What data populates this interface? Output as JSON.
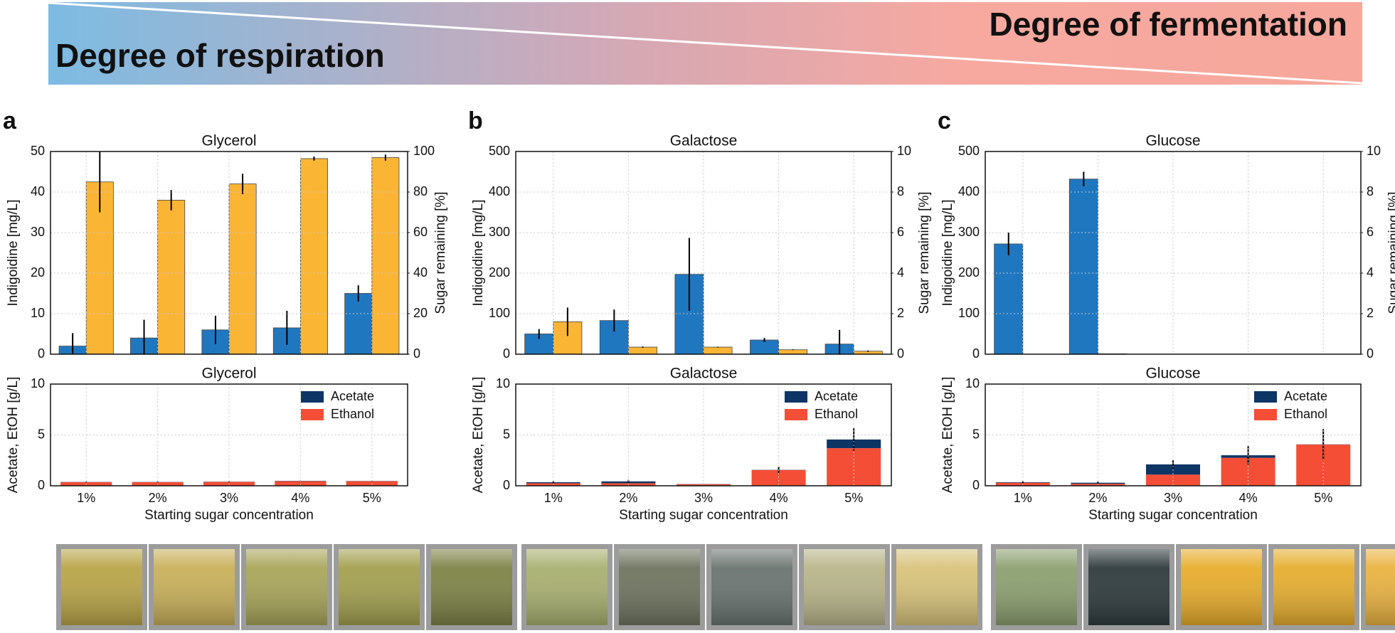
{
  "header": {
    "left_label": "Degree of respiration",
    "right_label": "Degree of fermentation"
  },
  "panel_labels": [
    "a",
    "b",
    "c"
  ],
  "chart_data": [
    {
      "type": "bar",
      "title": "Glycerol",
      "ylabel": "Indigoidine [mg/L]",
      "y2label": "Sugar remaining [%]",
      "ylim": [
        0,
        50
      ],
      "yticks": [
        0,
        10,
        20,
        30,
        40,
        50
      ],
      "y2lim": [
        0,
        100
      ],
      "y2ticks": [
        0,
        20,
        40,
        60,
        80,
        100
      ],
      "grid": true,
      "series": [
        {
          "color": "#1f77c0",
          "values": [
            2,
            4,
            6,
            6.5,
            15
          ],
          "errors": [
            3.2,
            4.5,
            3.5,
            4.2,
            2
          ]
        },
        {
          "color": "#fbb535",
          "axis": "y2",
          "values": [
            85,
            76,
            84,
            96.5,
            97
          ],
          "errors": [
            15,
            5,
            5,
            1,
            1.5
          ]
        }
      ]
    },
    {
      "type": "stacked_bar",
      "title": "Glycerol",
      "xlabel": "Starting sugar concentration",
      "ylabel": "Acetate, EtOH [g/L]",
      "categories": [
        "1%",
        "2%",
        "3%",
        "4%",
        "5%"
      ],
      "ylim": [
        0,
        10
      ],
      "yticks": [
        0,
        5,
        10
      ],
      "grid": true,
      "legend": "upper right",
      "series": [
        {
          "name": "Ethanol",
          "color": "#f44e36",
          "values": [
            0.35,
            0.35,
            0.38,
            0.45,
            0.45
          ]
        },
        {
          "name": "Acetate",
          "color": "#0d3566",
          "values": [
            0.02,
            0.02,
            0.02,
            0.03,
            0.02
          ],
          "errors": [
            0.03,
            0.03,
            0.03,
            0.03,
            0.03
          ]
        }
      ]
    },
    {
      "type": "bar",
      "title": "Galactose",
      "ylabel": "Indigoidine [mg/L]",
      "y2label": "Sugar remaining [%]",
      "ylim": [
        0,
        500
      ],
      "yticks": [
        0,
        100,
        200,
        300,
        400,
        500
      ],
      "y2lim": [
        0,
        10
      ],
      "y2ticks": [
        0,
        2,
        4,
        6,
        8,
        10
      ],
      "grid": true,
      "series": [
        {
          "color": "#1f77c0",
          "values": [
            50,
            83,
            197,
            35,
            25
          ],
          "errors": [
            12,
            27,
            90,
            5,
            35
          ]
        },
        {
          "color": "#fbb535",
          "axis": "y2",
          "values": [
            1.6,
            0.35,
            0.35,
            0.22,
            0.15
          ],
          "errors": [
            0.7,
            0.03,
            0.02,
            0.02,
            0.03
          ]
        }
      ]
    },
    {
      "type": "stacked_bar",
      "title": "Galactose",
      "xlabel": "Starting sugar concentration",
      "ylabel": "Acetate, EtOH [g/L]",
      "categories": [
        "1%",
        "2%",
        "3%",
        "4%",
        "5%"
      ],
      "ylim": [
        0,
        10
      ],
      "yticks": [
        0,
        5,
        10
      ],
      "grid": true,
      "legend": "upper right",
      "series": [
        {
          "name": "Ethanol",
          "color": "#f44e36",
          "values": [
            0.25,
            0.25,
            0.15,
            1.55,
            3.7
          ]
        },
        {
          "name": "Acetate",
          "color": "#0d3566",
          "values": [
            0.1,
            0.18,
            0.02,
            0.02,
            0.85
          ],
          "errors": [
            0.1,
            0.15,
            0.02,
            0.3,
            1.1
          ]
        }
      ]
    },
    {
      "type": "bar",
      "title": "Glucose",
      "ylabel": "Indigoidine [mg/L]",
      "y2label": "Sugar remaining [%]",
      "ylim": [
        0,
        500
      ],
      "yticks": [
        0,
        100,
        200,
        300,
        400,
        500
      ],
      "y2lim": [
        0,
        10
      ],
      "y2ticks": [
        0,
        2,
        4,
        6,
        8,
        10
      ],
      "grid": true,
      "series": [
        {
          "color": "#1f77c0",
          "values": [
            272,
            432,
            0,
            0,
            0
          ],
          "errors": [
            28,
            18,
            0,
            0,
            0
          ]
        },
        {
          "color": "#fbb535",
          "axis": "y2",
          "values": [
            0,
            0.02,
            0,
            0,
            0
          ],
          "errors": [
            0,
            0,
            0,
            0,
            0
          ]
        }
      ]
    },
    {
      "type": "stacked_bar",
      "title": "Glucose",
      "xlabel": "Starting sugar concentration",
      "ylabel": "Acetate, EtOH [g/L]",
      "categories": [
        "1%",
        "2%",
        "3%",
        "4%",
        "5%"
      ],
      "ylim": [
        0,
        10
      ],
      "yticks": [
        0,
        5,
        10
      ],
      "grid": true,
      "legend": "upper right",
      "series": [
        {
          "name": "Ethanol",
          "color": "#f44e36",
          "values": [
            0.3,
            0.2,
            1.1,
            2.75,
            4.05
          ]
        },
        {
          "name": "Acetate",
          "color": "#0d3566",
          "values": [
            0.05,
            0.1,
            1.0,
            0.25,
            0.02
          ],
          "errors": [
            0.1,
            0.1,
            0.4,
            0.9,
            1.5
          ]
        }
      ]
    }
  ]
}
